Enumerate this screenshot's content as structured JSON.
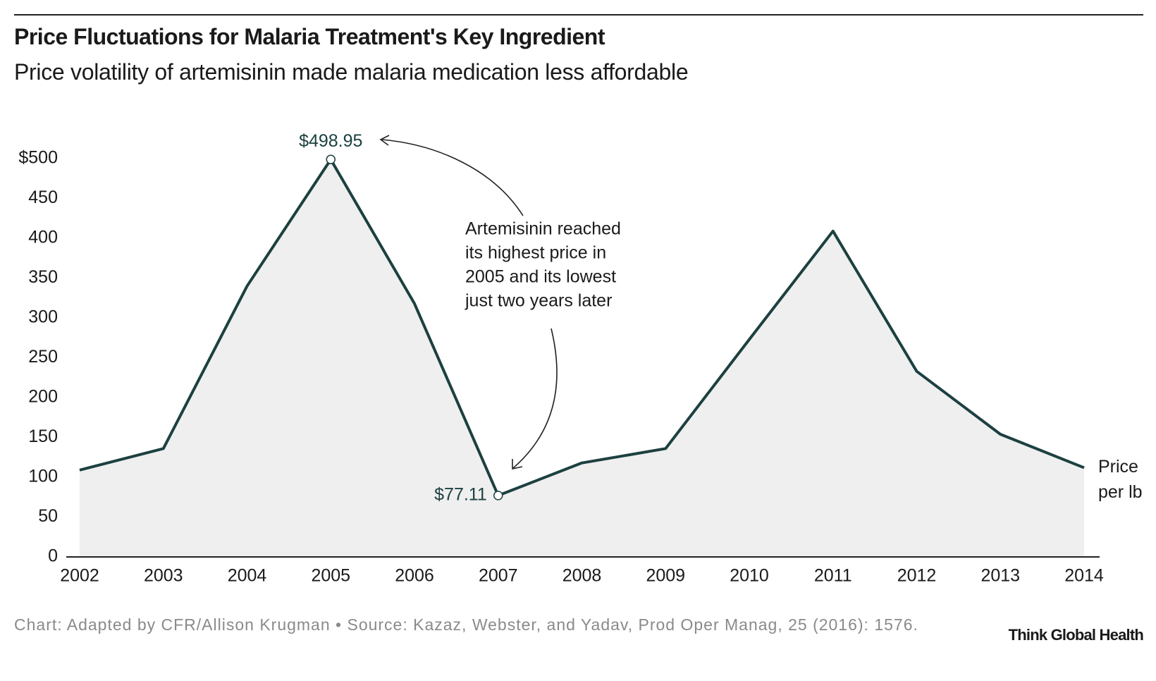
{
  "chart_data": {
    "type": "line",
    "title": "Price Fluctuations for Malaria Treatment's Key Ingredient",
    "subtitle": "Price volatility of artemisinin made malaria medication less affordable",
    "categories": [
      "2002",
      "2003",
      "2004",
      "2005",
      "2006",
      "2007",
      "2008",
      "2009",
      "2010",
      "2011",
      "2012",
      "2013",
      "2014"
    ],
    "series": [
      {
        "name": "Price per lb",
        "color": "#1d4040",
        "values": [
          109,
          136,
          340,
          498.95,
          318,
          77.11,
          118,
          136,
          273,
          409,
          233,
          154,
          112
        ],
        "value_labels": [
          null,
          null,
          null,
          "$498.95",
          null,
          "$77.11",
          null,
          null,
          null,
          null,
          null,
          null,
          null
        ]
      }
    ],
    "area_color": "#efefef",
    "ylim": [
      0,
      500
    ],
    "yticks": [
      0,
      50,
      100,
      150,
      200,
      250,
      300,
      350,
      400,
      450,
      {
        "value": 500,
        "label": "$500"
      }
    ],
    "annotation": [
      "Artemisinin reached",
      "its highest price in",
      "2005 and its lowest",
      "just two years later"
    ],
    "source": "Chart: Adapted by CFR/Allison Krugman • Source: Kazaz, Webster, and Yadav, Prod Oper Manag, 25 (2016): 1576.",
    "brand": "Think Global Health"
  }
}
